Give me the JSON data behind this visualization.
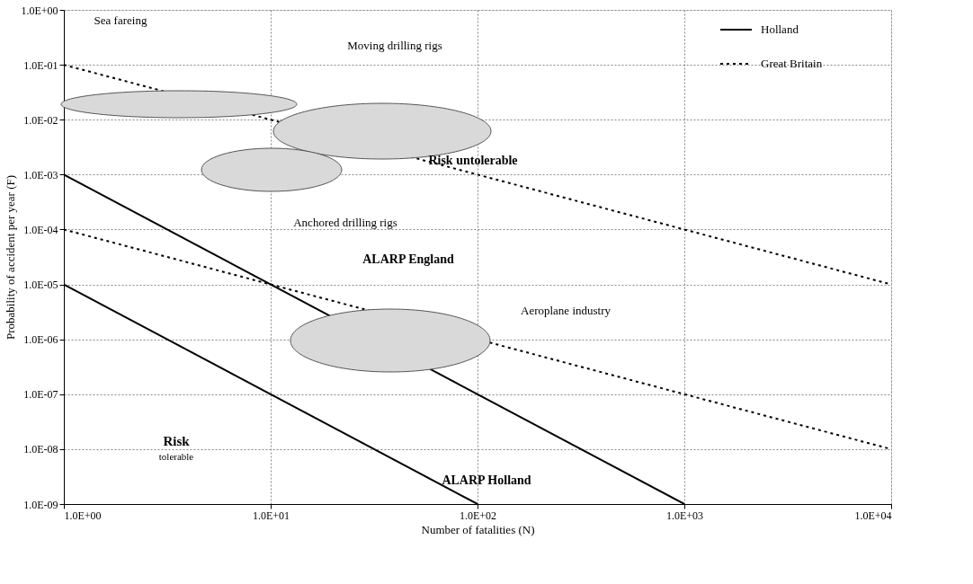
{
  "chart_data": {
    "type": "line",
    "xlabel": "Number of fatalities (N)",
    "ylabel": "Probability of accident  per year (F)",
    "xlim": [
      1,
      10000
    ],
    "ylim": [
      1e-09,
      1
    ],
    "xticks": [
      {
        "value": 1,
        "label": "1.0E+00"
      },
      {
        "value": 10,
        "label": "1.0E+01"
      },
      {
        "value": 100,
        "label": "1.0E+02"
      },
      {
        "value": 1000,
        "label": "1.0E+03"
      },
      {
        "value": 10000,
        "label": "1.0E+04"
      }
    ],
    "yticks": [
      {
        "value": 1e-09,
        "label": "1.0E-09"
      },
      {
        "value": 1e-08,
        "label": "1.0E-08"
      },
      {
        "value": 1e-07,
        "label": "1.0E-07"
      },
      {
        "value": 1e-06,
        "label": "1.0E-06"
      },
      {
        "value": 1e-05,
        "label": "1.0E-05"
      },
      {
        "value": 0.0001,
        "label": "1.0E-04"
      },
      {
        "value": 0.001,
        "label": "1.0E-03"
      },
      {
        "value": 0.01,
        "label": "1.0E-02"
      },
      {
        "value": 0.1,
        "label": "1.0E-01"
      },
      {
        "value": 1,
        "label": "1.0E+00"
      }
    ],
    "log": "xy",
    "grid": true,
    "legend": "top right",
    "series": [
      {
        "name": "Holland",
        "color": "#000000",
        "line_style": "solid",
        "x": [
          1,
          1000
        ],
        "values": [
          0.001,
          1e-09
        ]
      },
      {
        "color": "#000000",
        "line_style": "solid",
        "x": [
          1,
          100
        ],
        "values": [
          1e-05,
          1e-09
        ]
      },
      {
        "name": "Great Britain",
        "color": "#000000",
        "line_style": "dotted",
        "x": [
          1,
          10000
        ],
        "values": [
          0.1,
          1e-05
        ]
      },
      {
        "color": "#000000",
        "line_style": "dotted",
        "x": [
          1,
          10000
        ],
        "values": [
          0.0001,
          1e-08
        ]
      }
    ],
    "annotations": [
      "Sea  fareing",
      "Moving drilling rigs",
      "Anchored drilling rigs",
      "Aeroplane industry",
      "Risk untolerable",
      "ALARP England",
      "Risk",
      "tolerable",
      "ALARP Holland"
    ]
  }
}
